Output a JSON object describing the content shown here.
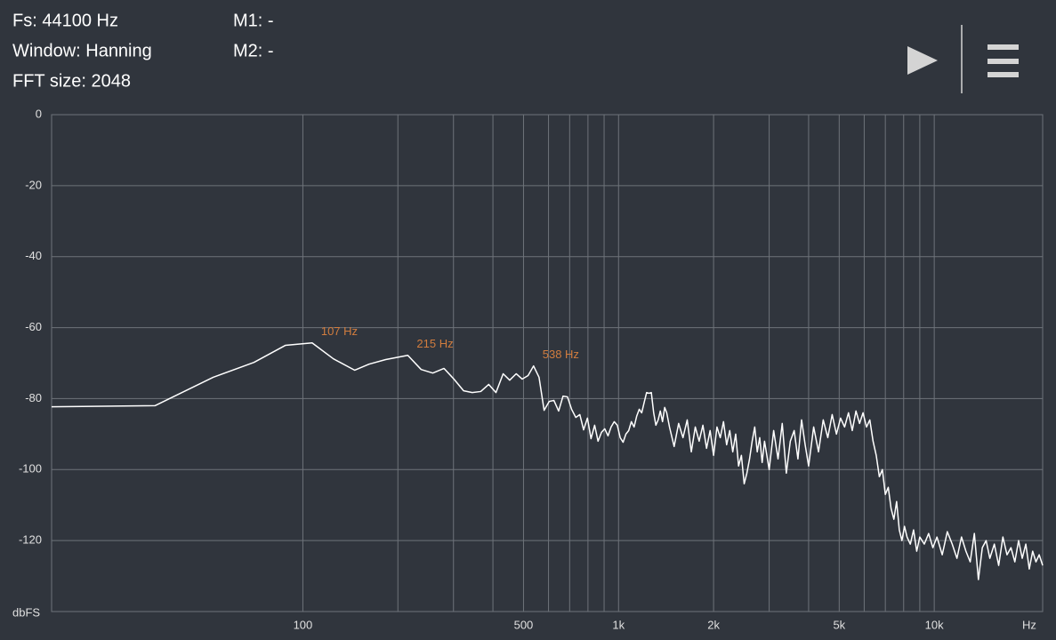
{
  "header": {
    "fs": "Fs: 44100 Hz",
    "window": "Window: Hanning",
    "fft_size": "FFT size: 2048",
    "m1": "M1: -",
    "m2": "M2: -"
  },
  "chart_data": {
    "type": "line",
    "ylabel": "dbFS",
    "xlabel": "Hz",
    "x_scale": "log",
    "grid": true,
    "xlim": [
      16,
      22050
    ],
    "ylim": [
      -140,
      0
    ],
    "yticks": [
      0,
      -20,
      -40,
      -60,
      -80,
      -100,
      -120
    ],
    "xticks": [
      100,
      500,
      {
        "value": 1000,
        "label": "1k"
      },
      {
        "value": 2000,
        "label": "2k"
      },
      {
        "value": 5000,
        "label": "5k"
      },
      {
        "value": 10000,
        "label": "10k"
      }
    ],
    "x_minor_ticks": [
      200,
      300,
      400,
      600,
      700,
      800,
      900,
      3000,
      4000,
      6000,
      7000,
      8000,
      9000
    ],
    "color": "#ffffff",
    "x": [
      16,
      34,
      52,
      70,
      88,
      107,
      125,
      146,
      162,
      183,
      215,
      237,
      258,
      280,
      301,
      323,
      344,
      366,
      388,
      409,
      431,
      452,
      474,
      495,
      517,
      538,
      560,
      581,
      603,
      624,
      646,
      667,
      689,
      710,
      732,
      754,
      775,
      797,
      818,
      840,
      861,
      883,
      904,
      926,
      947,
      969,
      991,
      1012,
      1034,
      1055,
      1077,
      1098,
      1120,
      1141,
      1163,
      1184,
      1206,
      1227,
      1249,
      1270,
      1292,
      1313,
      1335,
      1356,
      1378,
      1400,
      1421,
      1450,
      1500,
      1550,
      1600,
      1650,
      1700,
      1750,
      1800,
      1850,
      1900,
      1950,
      2000,
      2050,
      2100,
      2150,
      2200,
      2250,
      2300,
      2350,
      2400,
      2450,
      2500,
      2550,
      2600,
      2650,
      2700,
      2750,
      2800,
      2850,
      2900,
      3000,
      3100,
      3200,
      3300,
      3400,
      3500,
      3600,
      3700,
      3800,
      3900,
      4000,
      4150,
      4300,
      4450,
      4600,
      4750,
      4900,
      5050,
      5200,
      5350,
      5500,
      5650,
      5800,
      5950,
      6100,
      6250,
      6400,
      6550,
      6700,
      6850,
      7000,
      7150,
      7300,
      7450,
      7600,
      7750,
      7900,
      8050,
      8200,
      8400,
      8600,
      8800,
      9000,
      9300,
      9600,
      9900,
      10200,
      10600,
      11000,
      11400,
      11800,
      12200,
      12600,
      13000,
      13400,
      13800,
      14200,
      14600,
      15000,
      15500,
      16000,
      16500,
      17000,
      17500,
      18000,
      18500,
      19000,
      19500,
      20000,
      20500,
      21000,
      21500,
      22050
    ],
    "values": [
      -82.3,
      -82,
      -74,
      -69.8,
      -65,
      -64.3,
      -68.8,
      -72,
      -70.3,
      -69,
      -67.8,
      -71.8,
      -72.8,
      -71.5,
      -74.5,
      -77.8,
      -78.3,
      -78,
      -76,
      -78.3,
      -73,
      -74.8,
      -73,
      -74.5,
      -73.5,
      -70.8,
      -74,
      -83.3,
      -80.8,
      -80.5,
      -83.5,
      -79.3,
      -79.5,
      -83,
      -85.3,
      -84.5,
      -88.8,
      -85.5,
      -91.3,
      -87.5,
      -92,
      -89.5,
      -88.5,
      -90.5,
      -88,
      -86.5,
      -87.5,
      -91,
      -92.3,
      -90,
      -89,
      -86.5,
      -88,
      -85,
      -83,
      -84,
      -81,
      -78.3,
      -78.5,
      -78.3,
      -84,
      -87.5,
      -86,
      -83.5,
      -86.5,
      -82.5,
      -84,
      -88,
      -93.5,
      -87,
      -91,
      -86,
      -95,
      -88,
      -92,
      -87.5,
      -94,
      -89,
      -96,
      -88,
      -91,
      -86.5,
      -93,
      -89,
      -95,
      -90,
      -99,
      -96,
      -104,
      -101,
      -97,
      -92,
      -88,
      -95,
      -91,
      -98,
      -92,
      -100,
      -89,
      -97,
      -87,
      -101,
      -92,
      -89,
      -97,
      -86,
      -93,
      -99,
      -88,
      -95,
      -86,
      -91,
      -84.5,
      -90,
      -85.5,
      -88,
      -84,
      -89,
      -83.5,
      -87,
      -84,
      -88,
      -86,
      -92,
      -96,
      -102,
      -100,
      -107,
      -105,
      -111,
      -114,
      -109,
      -117,
      -120,
      -116,
      -119,
      -121,
      -117,
      -123,
      -119,
      -121,
      -118,
      -122,
      -119,
      -124,
      -117.5,
      -121,
      -125,
      -119,
      -123,
      -126,
      -118,
      -131,
      -122,
      -120,
      -125,
      -121,
      -127,
      -119,
      -124,
      -122,
      -126,
      -120,
      -125,
      -121,
      -128,
      -123,
      -126,
      -124,
      -127
    ],
    "annotations": [
      {
        "text": "107 Hz",
        "x": 107,
        "y": -64.3,
        "color": "#d27d3e"
      },
      {
        "text": "215 Hz",
        "x": 215,
        "y": -67.8,
        "color": "#d27d3e"
      },
      {
        "text": "538 Hz",
        "x": 538,
        "y": -70.8,
        "color": "#d27d3e"
      }
    ]
  }
}
